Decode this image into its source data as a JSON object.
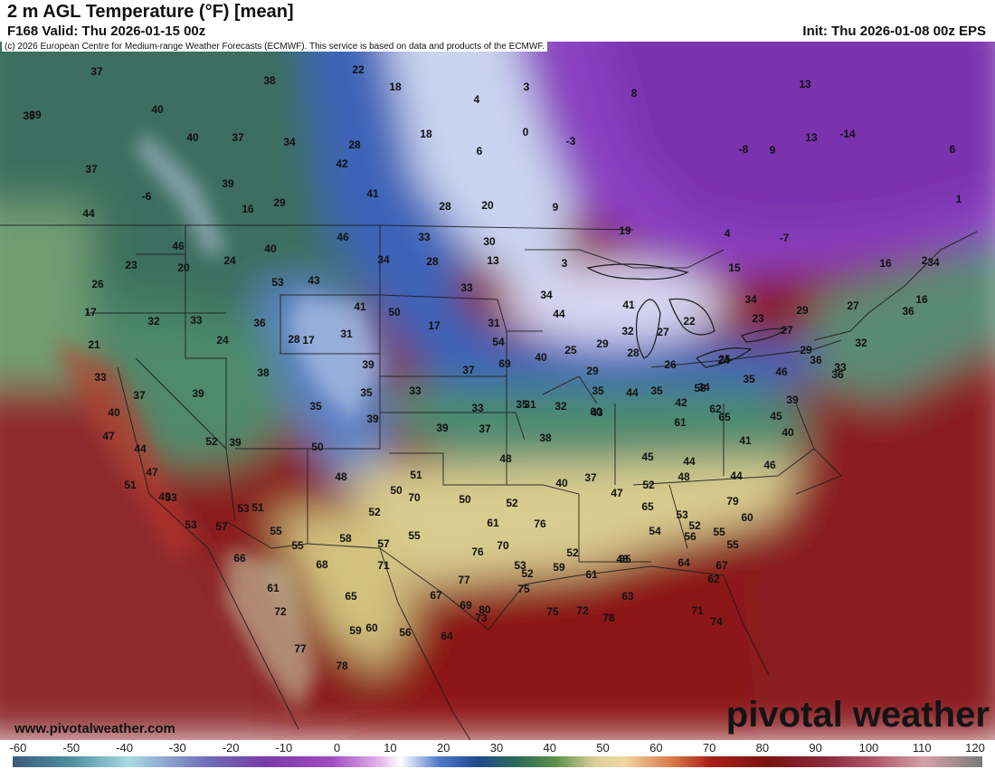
{
  "header": {
    "title": "2 m AGL Temperature (°F) [mean]",
    "valid": "F168 Valid: Thu 2026-01-15 00z",
    "init": "Init: Thu 2026-01-08 00z EPS",
    "credit": "(c) 2026 European Centre for Medium-range Weather Forecasts (ECMWF). This service is based on data and products of the ECMWF."
  },
  "footer": {
    "website": "www.pivotalweather.com",
    "brand": "pivotal weather"
  },
  "colorbar": {
    "labels": [
      "-60",
      "-50",
      "-40",
      "-30",
      "-20",
      "-10",
      "0",
      "10",
      "20",
      "30",
      "40",
      "50",
      "60",
      "70",
      "80",
      "90",
      "100",
      "110",
      "120"
    ]
  },
  "map_values": [
    "37",
    "38",
    "22",
    "18",
    "3",
    "8",
    "13",
    "40",
    "39",
    "40",
    "37",
    "34",
    "4",
    "0",
    "-3",
    "-8",
    "13",
    "-14",
    "35",
    "37",
    "28",
    "18",
    "6",
    "9",
    "6",
    "-6",
    "39",
    "42",
    "29",
    "41",
    "28",
    "20",
    "9",
    "3",
    "16",
    "44",
    "19",
    "4",
    "-7",
    "1",
    "23",
    "46",
    "40",
    "46",
    "34",
    "33",
    "28",
    "30",
    "13",
    "15",
    "16",
    "2",
    "26",
    "20",
    "24",
    "53",
    "43",
    "33",
    "34",
    "44",
    "27",
    "16",
    "17",
    "32",
    "33",
    "36",
    "50",
    "41",
    "41",
    "34",
    "36",
    "34",
    "17",
    "17",
    "31",
    "25",
    "31",
    "32",
    "27",
    "22",
    "23",
    "21",
    "24",
    "28",
    "54",
    "40",
    "25",
    "29",
    "28",
    "26",
    "24",
    "27",
    "29",
    "32",
    "29",
    "33",
    "39",
    "37",
    "69",
    "35",
    "32",
    "31",
    "29",
    "35",
    "34",
    "35",
    "46",
    "36",
    "33",
    "37",
    "39",
    "38",
    "35",
    "33",
    "33",
    "37",
    "35",
    "44",
    "42",
    "58",
    "45",
    "39",
    "36",
    "40",
    "35",
    "39",
    "39",
    "43",
    "61",
    "65",
    "41",
    "40",
    "47",
    "52",
    "39",
    "38",
    "60",
    "62",
    "45",
    "50",
    "44",
    "47",
    "51",
    "48",
    "40",
    "37",
    "44",
    "44",
    "46",
    "48",
    "50",
    "70",
    "51",
    "49",
    "50",
    "52",
    "47",
    "52",
    "48",
    "79",
    "60",
    "65",
    "53",
    "51",
    "53",
    "52",
    "55",
    "61",
    "76",
    "54",
    "52",
    "55",
    "55",
    "53",
    "53",
    "57",
    "55",
    "55",
    "58",
    "57",
    "70",
    "52",
    "48",
    "56",
    "62",
    "76",
    "53",
    "59",
    "61",
    "63",
    "65",
    "64",
    "67",
    "66",
    "68",
    "71",
    "75",
    "77",
    "52",
    "61",
    "65",
    "67",
    "69",
    "80",
    "75",
    "72",
    "78",
    "71",
    "74",
    "72",
    "59",
    "60",
    "56",
    "64",
    "73",
    "77",
    "78"
  ]
}
